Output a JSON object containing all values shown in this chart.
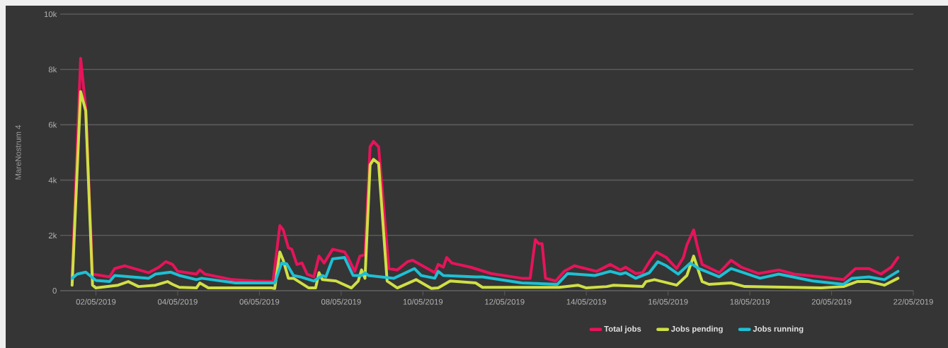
{
  "chart_data": {
    "type": "line",
    "ylabel": "MareNostrum 4",
    "xlim": [
      "2019-05-01T03:00",
      "2019-05-22T00:00"
    ],
    "ylim": [
      0,
      10000
    ],
    "xticks": [
      {
        "value": "2019-05-02",
        "label": "02/05/2019"
      },
      {
        "value": "2019-05-04",
        "label": "04/05/2019"
      },
      {
        "value": "2019-05-06",
        "label": "06/05/2019"
      },
      {
        "value": "2019-05-08",
        "label": "08/05/2019"
      },
      {
        "value": "2019-05-10",
        "label": "10/05/2019"
      },
      {
        "value": "2019-05-12",
        "label": "12/05/2019"
      },
      {
        "value": "2019-05-14",
        "label": "14/05/2019"
      },
      {
        "value": "2019-05-16",
        "label": "16/05/2019"
      },
      {
        "value": "2019-05-18",
        "label": "18/05/2019"
      },
      {
        "value": "2019-05-20",
        "label": "20/05/2019"
      },
      {
        "value": "2019-05-22",
        "label": "22/05/2019"
      }
    ],
    "yticks": [
      0,
      {
        "value": 2000,
        "label": "2k"
      },
      {
        "value": 4000,
        "label": "4k"
      },
      {
        "value": 6000,
        "label": "6k"
      },
      {
        "value": 8000,
        "label": "8k"
      },
      {
        "value": 10000,
        "label": "10k"
      }
    ],
    "grid": "y",
    "legend": "bottom",
    "marker": "none",
    "line_style": "solid",
    "series": [
      {
        "name": "Total jobs",
        "color": "#e6145a",
        "x": [
          "2019-05-01T10:00",
          "2019-05-01T15:00",
          "2019-05-01T18:00",
          "2019-05-01T22:00",
          "2019-05-02T08:00",
          "2019-05-02T11:00",
          "2019-05-02T17:00",
          "2019-05-03T07:00",
          "2019-05-03T13:00",
          "2019-05-03T17:00",
          "2019-05-03T21:00",
          "2019-05-04T00:00",
          "2019-05-04T11:00",
          "2019-05-04T13:00",
          "2019-05-04T16:00",
          "2019-05-05T08:00",
          "2019-05-05T21:00",
          "2019-05-06T08:00",
          "2019-05-06T12:00",
          "2019-05-06T14:00",
          "2019-05-06T17:00",
          "2019-05-06T19:00",
          "2019-05-06T22:00",
          "2019-05-07T01:00",
          "2019-05-07T04:00",
          "2019-05-07T08:00",
          "2019-05-07T11:00",
          "2019-05-07T14:00",
          "2019-05-07T19:00",
          "2019-05-08T02:00",
          "2019-05-08T04:00",
          "2019-05-08T08:00",
          "2019-05-08T11:00",
          "2019-05-08T14:00",
          "2019-05-08T17:00",
          "2019-05-08T19:00",
          "2019-05-08T22:00",
          "2019-05-09T04:00",
          "2019-05-09T09:00",
          "2019-05-09T15:00",
          "2019-05-09T18:00",
          "2019-05-10T07:00",
          "2019-05-10T09:00",
          "2019-05-10T12:00",
          "2019-05-10T14:00",
          "2019-05-10T17:00",
          "2019-05-11T04:00",
          "2019-05-11T16:00",
          "2019-05-12T10:00",
          "2019-05-12T15:00",
          "2019-05-12T18:00",
          "2019-05-12T20:00",
          "2019-05-12T22:00",
          "2019-05-13T00:00",
          "2019-05-13T06:00",
          "2019-05-13T11:00",
          "2019-05-13T17:00",
          "2019-05-14T06:00",
          "2019-05-14T14:00",
          "2019-05-14T20:00",
          "2019-05-14T23:00",
          "2019-05-15T05:00",
          "2019-05-15T09:00",
          "2019-05-15T13:00",
          "2019-05-15T17:00",
          "2019-05-15T23:00",
          "2019-05-16T05:00",
          "2019-05-16T09:00",
          "2019-05-16T11:00",
          "2019-05-16T15:00",
          "2019-05-16T17:00",
          "2019-05-16T20:00",
          "2019-05-17T06:00",
          "2019-05-17T13:00",
          "2019-05-17T19:00",
          "2019-05-18T05:00",
          "2019-05-18T17:00",
          "2019-05-19T02:00",
          "2019-05-19T18:00",
          "2019-05-20T07:00",
          "2019-05-20T14:00",
          "2019-05-20T22:00",
          "2019-05-21T05:00",
          "2019-05-21T11:00",
          "2019-05-21T15:00"
        ],
        "values": [
          500,
          8400,
          6600,
          600,
          500,
          800,
          900,
          650,
          850,
          1050,
          950,
          700,
          600,
          750,
          600,
          400,
          350,
          330,
          2350,
          2200,
          1550,
          1500,
          950,
          1000,
          600,
          500,
          1250,
          1000,
          1500,
          1400,
          1200,
          700,
          1250,
          1300,
          5200,
          5400,
          5200,
          800,
          750,
          1050,
          1100,
          650,
          950,
          850,
          1200,
          1000,
          850,
          620,
          450,
          450,
          1850,
          1700,
          1700,
          450,
          350,
          700,
          900,
          700,
          950,
          750,
          850,
          620,
          650,
          1050,
          1400,
          1200,
          800,
          1200,
          1650,
          2200,
          1650,
          950,
          650,
          1100,
          850,
          620,
          750,
          600,
          500,
          400,
          800,
          800,
          600,
          850,
          1200
        ]
      },
      {
        "name": "Jobs pending",
        "color": "#cfdf45",
        "x": [
          "2019-05-01T10:00",
          "2019-05-01T15:00",
          "2019-05-01T18:00",
          "2019-05-01T22:00",
          "2019-05-02T00:00",
          "2019-05-02T13:00",
          "2019-05-02T19:00",
          "2019-05-03T01:00",
          "2019-05-03T11:00",
          "2019-05-03T18:00",
          "2019-05-03T21:00",
          "2019-05-04T01:00",
          "2019-05-04T11:00",
          "2019-05-04T13:00",
          "2019-05-04T18:00",
          "2019-05-06T07:00",
          "2019-05-06T09:00",
          "2019-05-06T12:00",
          "2019-05-06T14:00",
          "2019-05-06T17:00",
          "2019-05-06T20:00",
          "2019-05-07T05:00",
          "2019-05-07T09:00",
          "2019-05-07T11:00",
          "2019-05-07T13:00",
          "2019-05-07T21:00",
          "2019-05-08T06:00",
          "2019-05-08T10:00",
          "2019-05-08T12:00",
          "2019-05-08T14:00",
          "2019-05-08T17:00",
          "2019-05-08T19:00",
          "2019-05-08T22:00",
          "2019-05-09T03:00",
          "2019-05-09T09:00",
          "2019-05-09T20:00",
          "2019-05-10T05:00",
          "2019-05-10T09:00",
          "2019-05-10T16:00",
          "2019-05-11T07:00",
          "2019-05-11T11:00",
          "2019-05-13T08:00",
          "2019-05-13T19:00",
          "2019-05-14T00:00",
          "2019-05-14T12:00",
          "2019-05-14T16:00",
          "2019-05-15T09:00",
          "2019-05-15T11:00",
          "2019-05-15T16:00",
          "2019-05-16T05:00",
          "2019-05-16T11:00",
          "2019-05-16T15:00",
          "2019-05-16T20:00",
          "2019-05-17T00:00",
          "2019-05-17T13:00",
          "2019-05-17T21:00",
          "2019-05-19T18:00",
          "2019-05-20T07:00",
          "2019-05-20T15:00",
          "2019-05-20T22:00",
          "2019-05-21T07:00",
          "2019-05-21T15:00"
        ],
        "values": [
          200,
          7200,
          6500,
          200,
          100,
          200,
          330,
          150,
          200,
          330,
          230,
          120,
          100,
          280,
          100,
          100,
          80,
          1400,
          1100,
          450,
          450,
          100,
          100,
          650,
          400,
          350,
          100,
          350,
          750,
          450,
          4550,
          4750,
          4600,
          350,
          100,
          400,
          80,
          100,
          350,
          280,
          120,
          120,
          200,
          100,
          150,
          200,
          150,
          330,
          400,
          200,
          550,
          1250,
          330,
          230,
          280,
          150,
          100,
          150,
          330,
          330,
          200,
          450
        ]
      },
      {
        "name": "Jobs running",
        "color": "#1ec0d4",
        "x": [
          "2019-05-01T10:00",
          "2019-05-01T13:00",
          "2019-05-01T18:00",
          "2019-05-02T00:00",
          "2019-05-02T08:00",
          "2019-05-02T11:00",
          "2019-05-03T07:00",
          "2019-05-03T11:00",
          "2019-05-03T20:00",
          "2019-05-04T01:00",
          "2019-05-04T11:00",
          "2019-05-04T14:00",
          "2019-05-05T10:00",
          "2019-05-05T21:00",
          "2019-05-06T09:00",
          "2019-05-06T13:00",
          "2019-05-06T16:00",
          "2019-05-06T20:00",
          "2019-05-07T00:00",
          "2019-05-07T08:00",
          "2019-05-07T13:00",
          "2019-05-07T15:00",
          "2019-05-07T19:00",
          "2019-05-08T02:00",
          "2019-05-08T07:00",
          "2019-05-08T12:00",
          "2019-05-08T14:00",
          "2019-05-08T16:00",
          "2019-05-09T07:00",
          "2019-05-09T19:00",
          "2019-05-09T23:00",
          "2019-05-10T07:00",
          "2019-05-10T09:00",
          "2019-05-10T12:00",
          "2019-05-11T07:00",
          "2019-05-11T11:00",
          "2019-05-12T10:00",
          "2019-05-13T07:00",
          "2019-05-13T13:00",
          "2019-05-14T05:00",
          "2019-05-14T14:00",
          "2019-05-14T20:00",
          "2019-05-14T23:00",
          "2019-05-15T05:00",
          "2019-05-15T13:00",
          "2019-05-15T18:00",
          "2019-05-15T23:00",
          "2019-05-16T06:00",
          "2019-05-16T13:00",
          "2019-05-16T18:00",
          "2019-05-17T06:00",
          "2019-05-17T13:00",
          "2019-05-18T06:00",
          "2019-05-18T17:00",
          "2019-05-19T13:00",
          "2019-05-20T07:00",
          "2019-05-20T12:00",
          "2019-05-20T22:00",
          "2019-05-21T07:00",
          "2019-05-21T15:00"
        ],
        "values": [
          450,
          600,
          670,
          370,
          330,
          550,
          450,
          600,
          670,
          550,
          400,
          450,
          280,
          280,
          280,
          1000,
          970,
          550,
          500,
          350,
          550,
          500,
          1150,
          1200,
          550,
          550,
          650,
          550,
          450,
          800,
          550,
          450,
          700,
          550,
          500,
          500,
          280,
          230,
          620,
          550,
          700,
          600,
          650,
          450,
          650,
          1050,
          900,
          600,
          1000,
          800,
          500,
          800,
          450,
          600,
          350,
          230,
          450,
          500,
          400,
          700
        ]
      }
    ]
  }
}
